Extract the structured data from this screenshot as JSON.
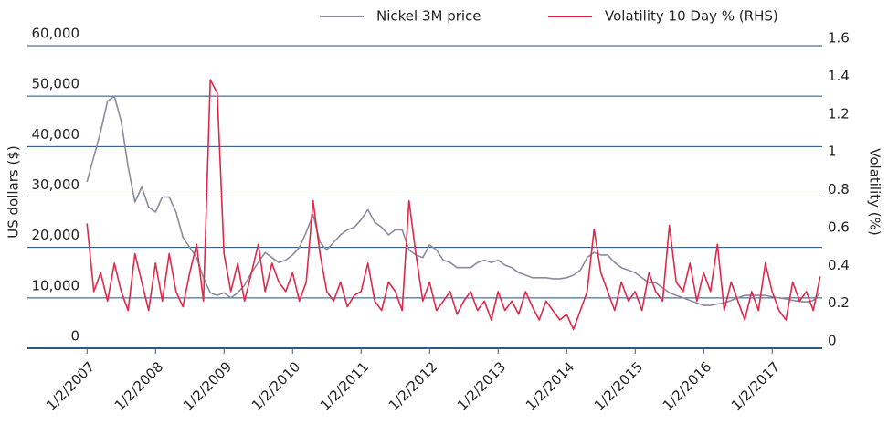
{
  "chart_data": {
    "type": "line",
    "x": [
      2007.0,
      2007.1,
      2007.2,
      2007.3,
      2007.4,
      2007.5,
      2007.6,
      2007.7,
      2007.8,
      2007.9,
      2008.0,
      2008.1,
      2008.2,
      2008.3,
      2008.4,
      2008.5,
      2008.6,
      2008.7,
      2008.8,
      2008.9,
      2009.0,
      2009.1,
      2009.2,
      2009.3,
      2009.4,
      2009.5,
      2009.6,
      2009.7,
      2009.8,
      2009.9,
      2010.0,
      2010.1,
      2010.2,
      2010.3,
      2010.4,
      2010.5,
      2010.6,
      2010.7,
      2010.8,
      2010.9,
      2011.0,
      2011.1,
      2011.2,
      2011.3,
      2011.4,
      2011.5,
      2011.6,
      2011.7,
      2011.8,
      2011.9,
      2012.0,
      2012.1,
      2012.2,
      2012.3,
      2012.4,
      2012.5,
      2012.6,
      2012.7,
      2012.8,
      2012.9,
      2013.0,
      2013.1,
      2013.2,
      2013.3,
      2013.4,
      2013.5,
      2013.6,
      2013.7,
      2013.8,
      2013.9,
      2014.0,
      2014.1,
      2014.2,
      2014.3,
      2014.4,
      2014.5,
      2014.6,
      2014.7,
      2014.8,
      2014.9,
      2015.0,
      2015.1,
      2015.2,
      2015.3,
      2015.4,
      2015.5,
      2015.6,
      2015.7,
      2015.8,
      2015.9,
      2016.0,
      2016.1,
      2016.2,
      2016.3,
      2016.4,
      2016.5,
      2016.6,
      2016.7,
      2016.8,
      2016.9,
      2017.0,
      2017.1,
      2017.2,
      2017.3,
      2017.4,
      2017.5,
      2017.6,
      2017.7
    ],
    "series": [
      {
        "name": "Nickel 3M price",
        "color": "#8e8a9e",
        "axis": "y",
        "values": [
          33000,
          38000,
          43000,
          49000,
          50000,
          45000,
          36000,
          29000,
          32000,
          28000,
          27000,
          30000,
          30000,
          27000,
          22000,
          20000,
          18000,
          14000,
          11000,
          10500,
          11000,
          10000,
          11000,
          12500,
          15000,
          17000,
          19000,
          18000,
          17000,
          17500,
          18500,
          20000,
          23000,
          26500,
          21000,
          19500,
          21000,
          22500,
          23500,
          24000,
          25500,
          27500,
          25000,
          24000,
          22500,
          23500,
          23500,
          19500,
          18500,
          18000,
          20500,
          19500,
          17500,
          17000,
          16000,
          16000,
          16000,
          17000,
          17500,
          17000,
          17500,
          16500,
          16000,
          15000,
          14500,
          14000,
          14000,
          14000,
          13800,
          13800,
          14000,
          14500,
          15500,
          18000,
          19000,
          18500,
          18500,
          17000,
          16000,
          15500,
          15000,
          14000,
          13000,
          13000,
          12000,
          11000,
          10500,
          10000,
          9500,
          9000,
          8500,
          8500,
          8800,
          9000,
          9500,
          10000,
          10500,
          10500,
          10500,
          10500,
          10200,
          10000,
          9800,
          9500,
          9300,
          9200,
          9500,
          11000
        ]
      },
      {
        "name": "Volatility 10 Day % (RHS)",
        "color": "#e0284a",
        "axis": "y2",
        "values": [
          0.66,
          0.3,
          0.4,
          0.25,
          0.45,
          0.3,
          0.2,
          0.5,
          0.35,
          0.2,
          0.45,
          0.25,
          0.5,
          0.3,
          0.22,
          0.4,
          0.55,
          0.25,
          1.42,
          1.35,
          0.5,
          0.3,
          0.45,
          0.25,
          0.4,
          0.55,
          0.3,
          0.45,
          0.35,
          0.3,
          0.4,
          0.25,
          0.35,
          0.78,
          0.5,
          0.3,
          0.25,
          0.35,
          0.22,
          0.28,
          0.3,
          0.45,
          0.25,
          0.2,
          0.35,
          0.3,
          0.2,
          0.78,
          0.5,
          0.25,
          0.35,
          0.2,
          0.25,
          0.3,
          0.18,
          0.25,
          0.3,
          0.2,
          0.25,
          0.15,
          0.3,
          0.2,
          0.25,
          0.18,
          0.3,
          0.22,
          0.15,
          0.25,
          0.2,
          0.15,
          0.18,
          0.1,
          0.2,
          0.3,
          0.63,
          0.4,
          0.3,
          0.2,
          0.35,
          0.25,
          0.3,
          0.2,
          0.4,
          0.3,
          0.25,
          0.65,
          0.35,
          0.3,
          0.45,
          0.25,
          0.4,
          0.3,
          0.55,
          0.2,
          0.35,
          0.25,
          0.15,
          0.3,
          0.2,
          0.45,
          0.3,
          0.2,
          0.15,
          0.35,
          0.25,
          0.3,
          0.2,
          0.38
        ]
      }
    ],
    "xlim": [
      2006.13,
      2017.73
    ],
    "xticks": [
      {
        "value": 2007.0,
        "label": "1/2/2007"
      },
      {
        "value": 2008.0,
        "label": "1/2/2008"
      },
      {
        "value": 2009.0,
        "label": "1/2/2009"
      },
      {
        "value": 2010.0,
        "label": "1/2/2010"
      },
      {
        "value": 2011.0,
        "label": "1/2/2011"
      },
      {
        "value": 2012.0,
        "label": "1/2/2012"
      },
      {
        "value": 2013.0,
        "label": "1/2/2013"
      },
      {
        "value": 2014.0,
        "label": "1/2/2014"
      },
      {
        "value": 2015.0,
        "label": "1/2/2015"
      },
      {
        "value": 2016.0,
        "label": "1/2/2016"
      },
      {
        "value": 2017.0,
        "label": "1/2/2017"
      }
    ],
    "ylabel": "US dollars ($)",
    "ylim": [
      0,
      60000
    ],
    "yticks": [
      0,
      {
        "value": 10000,
        "label": "10,000"
      },
      {
        "value": 20000,
        "label": "20,000"
      },
      {
        "value": 30000,
        "label": "30,000"
      },
      {
        "value": 40000,
        "label": "40,000"
      },
      {
        "value": 50000,
        "label": "50,000"
      },
      {
        "value": 60000,
        "label": "60,000"
      }
    ],
    "y2label": "Volatility (%)",
    "y2lim": [
      0,
      1.6
    ],
    "y2ticks": [
      0,
      0.2,
      0.4,
      0.6,
      0.8,
      1.0,
      1.2,
      1.4,
      1.6
    ],
    "grid": true,
    "legend": "top"
  }
}
